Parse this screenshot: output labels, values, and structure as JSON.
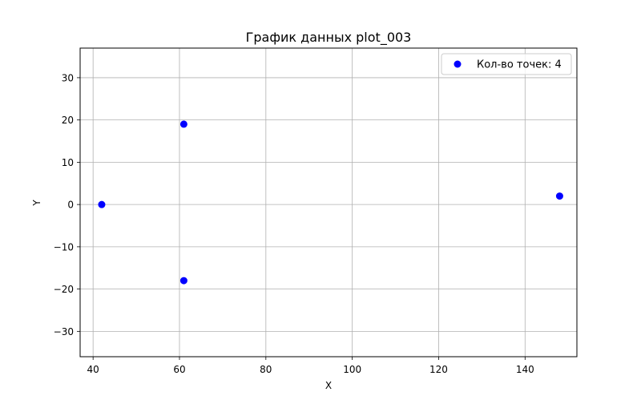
{
  "chart_data": {
    "type": "scatter",
    "title": "График данных plot_003",
    "xlabel": "X",
    "ylabel": "Y",
    "xlim": [
      37,
      152
    ],
    "ylim": [
      -36,
      37
    ],
    "xticks": [
      40,
      60,
      80,
      100,
      120,
      140
    ],
    "yticks": [
      -30,
      -20,
      -10,
      0,
      10,
      20,
      30
    ],
    "grid": true,
    "legend_position": "top-right",
    "series": [
      {
        "name": "Кол-во точек: 4",
        "color": "#0000ff",
        "marker": "circle",
        "x": [
          42,
          61,
          61,
          148
        ],
        "y": [
          0,
          19,
          -18,
          2
        ]
      }
    ]
  }
}
